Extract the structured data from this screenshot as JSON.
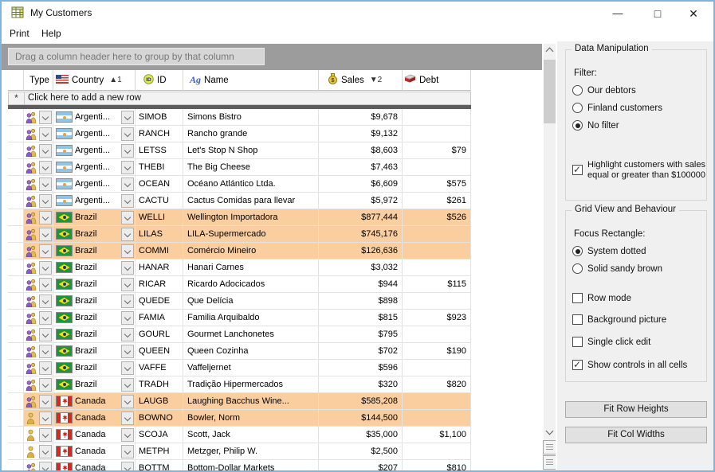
{
  "window": {
    "title": "My Customers",
    "controls": {
      "minimize": "—",
      "maximize": "□",
      "close": "✕"
    }
  },
  "menu": {
    "items": [
      "Print",
      "Help"
    ]
  },
  "grid": {
    "group_by_hint": "Drag a column header here to group by that column",
    "new_row_marker": "*",
    "new_row_hint": "Click here to add a new row",
    "columns": [
      {
        "key": "type",
        "label": "Type",
        "icon": "",
        "sort": ""
      },
      {
        "key": "country",
        "label": "Country",
        "icon": "us-flag-icon",
        "sort": "▲1"
      },
      {
        "key": "id",
        "label": "ID",
        "icon": "id-icon",
        "sort": ""
      },
      {
        "key": "name",
        "label": "Name",
        "icon": "font-icon",
        "sort": ""
      },
      {
        "key": "sales",
        "label": "Sales",
        "icon": "moneybag-icon",
        "sort": "▼2"
      },
      {
        "key": "debt",
        "label": "Debt",
        "icon": "debt-icon",
        "sort": ""
      }
    ],
    "rows": [
      {
        "type": "company",
        "country": "argentina",
        "country_label": "Argenti...",
        "id": "SIMOB",
        "name": "Simons Bistro",
        "sales": "$9,678",
        "debt": "",
        "highlight": false
      },
      {
        "type": "company",
        "country": "argentina",
        "country_label": "Argenti...",
        "id": "RANCH",
        "name": "Rancho grande",
        "sales": "$9,132",
        "debt": "",
        "highlight": false
      },
      {
        "type": "company",
        "country": "argentina",
        "country_label": "Argenti...",
        "id": "LETSS",
        "name": "Let's Stop N Shop",
        "sales": "$8,603",
        "debt": "$79",
        "highlight": false
      },
      {
        "type": "company",
        "country": "argentina",
        "country_label": "Argenti...",
        "id": "THEBI",
        "name": "The Big Cheese",
        "sales": "$7,463",
        "debt": "",
        "highlight": false
      },
      {
        "type": "company",
        "country": "argentina",
        "country_label": "Argenti...",
        "id": "OCEAN",
        "name": "Océano Atlántico Ltda.",
        "sales": "$6,609",
        "debt": "$575",
        "highlight": false
      },
      {
        "type": "company",
        "country": "argentina",
        "country_label": "Argenti...",
        "id": "CACTU",
        "name": "Cactus Comidas para llevar",
        "sales": "$5,972",
        "debt": "$261",
        "highlight": false
      },
      {
        "type": "company",
        "country": "brazil",
        "country_label": "Brazil",
        "id": "WELLI",
        "name": "Wellington Importadora",
        "sales": "$877,444",
        "debt": "$526",
        "highlight": true
      },
      {
        "type": "company",
        "country": "brazil",
        "country_label": "Brazil",
        "id": "LILAS",
        "name": "LILA-Supermercado",
        "sales": "$745,176",
        "debt": "",
        "highlight": true
      },
      {
        "type": "company",
        "country": "brazil",
        "country_label": "Brazil",
        "id": "COMMI",
        "name": "Comércio Mineiro",
        "sales": "$126,636",
        "debt": "",
        "highlight": true
      },
      {
        "type": "company",
        "country": "brazil",
        "country_label": "Brazil",
        "id": "HANAR",
        "name": "Hanari Carnes",
        "sales": "$3,032",
        "debt": "",
        "highlight": false
      },
      {
        "type": "company",
        "country": "brazil",
        "country_label": "Brazil",
        "id": "RICAR",
        "name": "Ricardo Adocicados",
        "sales": "$944",
        "debt": "$115",
        "highlight": false
      },
      {
        "type": "company",
        "country": "brazil",
        "country_label": "Brazil",
        "id": "QUEDE",
        "name": "Que Delícia",
        "sales": "$898",
        "debt": "",
        "highlight": false
      },
      {
        "type": "company",
        "country": "brazil",
        "country_label": "Brazil",
        "id": "FAMIA",
        "name": "Familia Arquibaldo",
        "sales": "$815",
        "debt": "$923",
        "highlight": false
      },
      {
        "type": "company",
        "country": "brazil",
        "country_label": "Brazil",
        "id": "GOURL",
        "name": "Gourmet Lanchonetes",
        "sales": "$795",
        "debt": "",
        "highlight": false
      },
      {
        "type": "company",
        "country": "brazil",
        "country_label": "Brazil",
        "id": "QUEEN",
        "name": "Queen Cozinha",
        "sales": "$702",
        "debt": "$190",
        "highlight": false
      },
      {
        "type": "company",
        "country": "brazil",
        "country_label": "Brazil",
        "id": "VAFFE",
        "name": "Vaffeljernet",
        "sales": "$596",
        "debt": "",
        "highlight": false
      },
      {
        "type": "company",
        "country": "brazil",
        "country_label": "Brazil",
        "id": "TRADH",
        "name": "Tradição Hipermercados",
        "sales": "$320",
        "debt": "$820",
        "highlight": false
      },
      {
        "type": "company",
        "country": "canada",
        "country_label": "Canada",
        "id": "LAUGB",
        "name": "Laughing Bacchus Wine...",
        "sales": "$585,208",
        "debt": "",
        "highlight": true
      },
      {
        "type": "person",
        "country": "canada",
        "country_label": "Canada",
        "id": "BOWNO",
        "name": "Bowler, Norm",
        "sales": "$144,500",
        "debt": "",
        "highlight": true
      },
      {
        "type": "person",
        "country": "canada",
        "country_label": "Canada",
        "id": "SCOJA",
        "name": "Scott, Jack",
        "sales": "$35,000",
        "debt": "$1,100",
        "highlight": false
      },
      {
        "type": "person",
        "country": "canada",
        "country_label": "Canada",
        "id": "METPH",
        "name": "Metzger, Philip W.",
        "sales": "$2,500",
        "debt": "",
        "highlight": false
      },
      {
        "type": "company",
        "country": "canada",
        "country_label": "Canada",
        "id": "BOTTM",
        "name": "Bottom-Dollar Markets",
        "sales": "$207",
        "debt": "$810",
        "highlight": false
      }
    ],
    "colors": {
      "highlight_row": "#fbce9f",
      "group_bar": "#9c9c9c",
      "window_border": "#7db4e0"
    }
  },
  "panel": {
    "data_manipulation": {
      "title": "Data Manipulation",
      "filter_label": "Filter:",
      "radios": [
        {
          "label": "Our debtors",
          "checked": false
        },
        {
          "label": "Finland customers",
          "checked": false
        },
        {
          "label": "No filter",
          "checked": true
        }
      ],
      "highlight_checkbox": {
        "label": "Highlight customers with sales equal or greater than $100000",
        "checked": true
      }
    },
    "grid_view": {
      "title": "Grid View and Behaviour",
      "focus_label": "Focus Rectangle:",
      "radios": [
        {
          "label": "System dotted",
          "checked": true
        },
        {
          "label": "Solid sandy brown",
          "checked": false
        }
      ],
      "checkboxes": [
        {
          "label": "Row mode",
          "checked": false
        },
        {
          "label": "Background picture",
          "checked": false
        },
        {
          "label": "Single click edit",
          "checked": false
        },
        {
          "label": "Show controls in all cells",
          "checked": true
        }
      ]
    },
    "buttons": [
      {
        "label": "Fit Row Heights"
      },
      {
        "label": "Fit Col Widths"
      }
    ]
  }
}
